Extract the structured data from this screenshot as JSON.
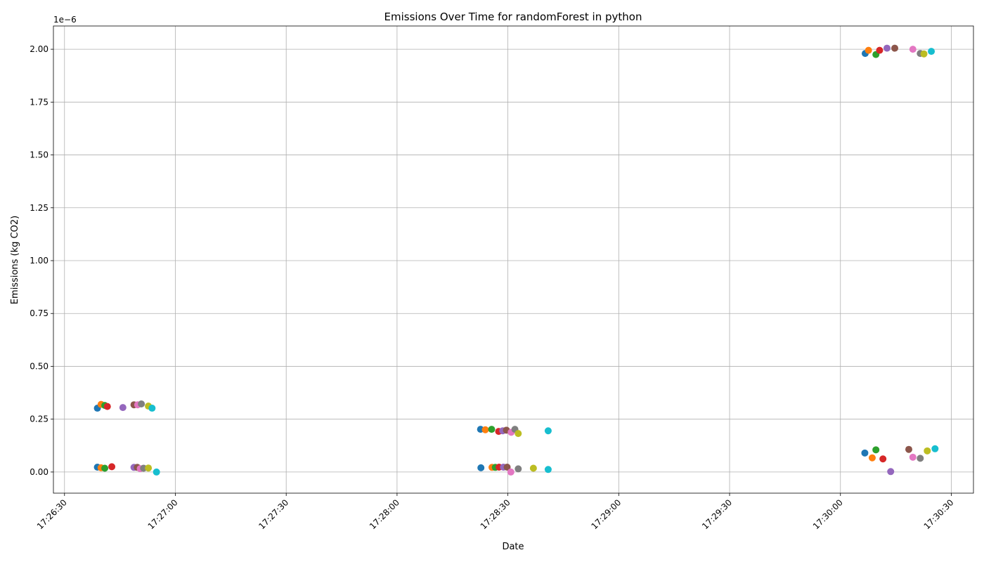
{
  "chart_data": {
    "type": "scatter",
    "title": "Emissions Over Time for randomForest in python",
    "xlabel": "Date",
    "ylabel": "Emissions (kg CO2)",
    "y_multiplier_label": "1e−6",
    "x_unit": "seconds since 17:26:30",
    "xlim": [
      -3,
      1395
    ],
    "ylim": [
      -0.1,
      2.11
    ],
    "grid": true,
    "x_ticks": [
      {
        "value": 0,
        "label": "17:26:30"
      },
      {
        "value": 30,
        "label": "17:27:00"
      },
      {
        "value": 60,
        "label": "17:27:30"
      },
      {
        "value": 90,
        "label": "17:28:00"
      },
      {
        "value": 120,
        "label": "17:28:30"
      },
      {
        "value": 150,
        "label": "17:29:00"
      },
      {
        "value": 180,
        "label": "17:29:30"
      },
      {
        "value": 210,
        "label": "17:30:00"
      },
      {
        "value": 240,
        "label": "17:30:30"
      }
    ],
    "y_ticks": [
      {
        "value": 0.0,
        "label": "0.00"
      },
      {
        "value": 0.25,
        "label": "0.25"
      },
      {
        "value": 0.5,
        "label": "0.50"
      },
      {
        "value": 0.75,
        "label": "0.75"
      },
      {
        "value": 1.0,
        "label": "1.00"
      },
      {
        "value": 1.25,
        "label": "1.25"
      },
      {
        "value": 1.5,
        "label": "1.50"
      },
      {
        "value": 1.75,
        "label": "1.75"
      },
      {
        "value": 2.0,
        "label": "2.00"
      }
    ],
    "palette": [
      "#1f77b4",
      "#ff7f0e",
      "#2ca02c",
      "#d62728",
      "#9467bd",
      "#8c564b",
      "#e377c2",
      "#7f7f7f",
      "#bcbd22",
      "#17becf"
    ],
    "series": [
      {
        "points": [
          [
            8.9,
            0.302
          ],
          [
            9.9,
            0.32
          ],
          [
            10.9,
            0.315
          ],
          [
            11.6,
            0.31
          ],
          [
            15.8,
            0.305
          ],
          [
            18.8,
            0.318
          ],
          [
            19.8,
            0.318
          ],
          [
            20.8,
            0.322
          ],
          [
            22.7,
            0.312
          ],
          [
            23.7,
            0.302
          ]
        ]
      },
      {
        "points": [
          [
            8.9,
            0.023
          ],
          [
            9.9,
            0.02
          ],
          [
            10.9,
            0.018
          ],
          [
            12.8,
            0.025
          ],
          [
            18.8,
            0.022
          ],
          [
            19.7,
            0.022
          ],
          [
            20.5,
            0.016
          ],
          [
            21.4,
            0.018
          ],
          [
            22.7,
            0.019
          ],
          [
            24.9,
            0.0
          ]
        ]
      },
      {
        "points": [
          [
            112.6,
            0.202
          ],
          [
            113.9,
            0.2
          ],
          [
            115.6,
            0.202
          ],
          [
            117.5,
            0.192
          ],
          [
            118.6,
            0.195
          ],
          [
            119.6,
            0.198
          ],
          [
            120.9,
            0.188
          ],
          [
            121.9,
            0.202
          ],
          [
            122.8,
            0.182
          ],
          [
            130.9,
            0.195
          ]
        ]
      },
      {
        "points": [
          [
            112.7,
            0.02
          ],
          [
            115.7,
            0.022
          ],
          [
            116.6,
            0.022
          ],
          [
            117.6,
            0.023
          ],
          [
            118.8,
            0.023
          ],
          [
            119.8,
            0.023
          ],
          [
            120.8,
            0.0
          ],
          [
            122.8,
            0.015
          ],
          [
            126.9,
            0.018
          ],
          [
            130.9,
            0.012
          ]
        ]
      },
      {
        "points": [
          [
            216.7,
            1.98
          ],
          [
            217.6,
            1.995
          ],
          [
            219.6,
            1.975
          ],
          [
            220.6,
            1.995
          ],
          [
            222.6,
            2.005
          ],
          [
            224.7,
            2.005
          ],
          [
            229.6,
            2.0
          ],
          [
            231.6,
            1.98
          ],
          [
            232.6,
            1.978
          ],
          [
            234.6,
            1.99
          ]
        ]
      },
      {
        "points": [
          [
            216.6,
            0.09
          ],
          [
            218.6,
            0.067
          ],
          [
            219.6,
            0.105
          ],
          [
            221.5,
            0.062
          ],
          [
            223.6,
            0.002
          ],
          [
            228.5,
            0.107
          ],
          [
            229.6,
            0.07
          ],
          [
            231.6,
            0.065
          ],
          [
            233.5,
            0.1
          ],
          [
            235.6,
            0.11
          ]
        ]
      }
    ]
  }
}
